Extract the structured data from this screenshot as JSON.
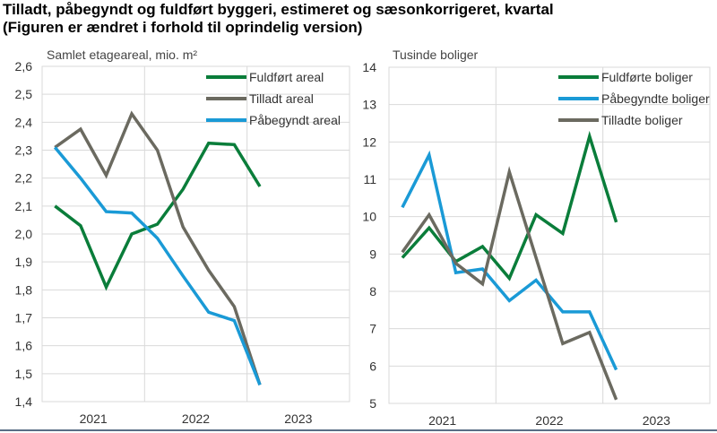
{
  "title_line1": "Tilladt, påbegyndt og fuldført byggeri, estimeret og sæsonkorrigeret, kvartal",
  "title_line2": "(Figuren er ændret i forhold til oprindelig version)",
  "chart_data": [
    {
      "type": "line",
      "ylabel": "Samlet etageareal, mio. m²",
      "ylim": [
        1.4,
        2.6
      ],
      "yticks": [
        "1,4",
        "1,5",
        "1,6",
        "1,7",
        "1,8",
        "1,9",
        "2,0",
        "2,1",
        "2,2",
        "2,3",
        "2,4",
        "2,5",
        "2,6"
      ],
      "x_categories": [
        "2021",
        "2022",
        "2023"
      ],
      "x": [
        "2021K1",
        "2021K2",
        "2021K3",
        "2021K4",
        "2022K1",
        "2022K2",
        "2022K3",
        "2022K4",
        "2023K1"
      ],
      "grid": true,
      "legend": "top-right",
      "series": [
        {
          "name": "Fuldført areal",
          "color": "#0a7d3a",
          "values": [
            2.1,
            2.03,
            1.81,
            2.0,
            2.035,
            2.16,
            2.325,
            2.32,
            2.17
          ]
        },
        {
          "name": "Tilladt areal",
          "color": "#6b6a60",
          "values": [
            2.31,
            2.375,
            2.21,
            2.43,
            2.3,
            2.025,
            1.87,
            1.74,
            1.46
          ]
        },
        {
          "name": "Påbegyndt areal",
          "color": "#1a9ad6",
          "values": [
            2.31,
            2.2,
            2.08,
            2.075,
            1.985,
            1.85,
            1.72,
            1.69,
            1.46
          ]
        }
      ]
    },
    {
      "type": "line",
      "ylabel": "Tusinde boliger",
      "ylim": [
        5,
        14
      ],
      "yticks": [
        "5",
        "6",
        "7",
        "8",
        "9",
        "10",
        "11",
        "12",
        "13",
        "14"
      ],
      "x_categories": [
        "2021",
        "2022",
        "2023"
      ],
      "x": [
        "2021K1",
        "2021K2",
        "2021K3",
        "2021K4",
        "2022K1",
        "2022K2",
        "2022K3",
        "2022K4",
        "2023K1"
      ],
      "grid": true,
      "legend": "top-right",
      "series": [
        {
          "name": "Fuldførte boliger",
          "color": "#0a7d3a",
          "values": [
            8.9,
            9.7,
            8.8,
            9.2,
            8.35,
            10.05,
            9.55,
            12.15,
            9.85
          ]
        },
        {
          "name": "Påbegyndte boliger",
          "color": "#1a9ad6",
          "values": [
            10.25,
            11.65,
            8.5,
            8.6,
            7.75,
            8.3,
            7.45,
            7.45,
            5.9
          ]
        },
        {
          "name": "Tilladte boliger",
          "color": "#6b6a60",
          "values": [
            9.05,
            10.05,
            8.75,
            8.2,
            11.2,
            8.9,
            6.6,
            6.9,
            5.1
          ]
        }
      ]
    }
  ]
}
